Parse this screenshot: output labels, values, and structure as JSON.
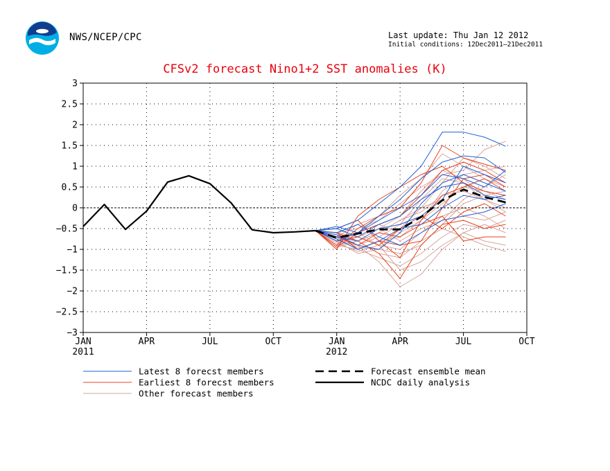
{
  "header": {
    "agency": "NWS/NCEP/CPC",
    "last_update": "Last update: Thu Jan 12 2012",
    "initial_conditions": "Initial conditions: 12Dec2011–21Dec2011"
  },
  "colors": {
    "latest": "#1f5fd6",
    "earliest": "#e8401c",
    "other": "#d9a49a",
    "title": "#e8000b",
    "analysis": "#000000"
  },
  "chart_data": {
    "type": "line",
    "title": "CFSv2 forecast Nino1+2 SST anomalies (K)",
    "ylim": [
      -3,
      3
    ],
    "yticks": [
      3,
      2.5,
      2,
      1.5,
      1,
      0.5,
      0,
      -0.5,
      -1,
      -1.5,
      -2,
      -2.5,
      -3
    ],
    "ytick_labels": [
      "3",
      "2.5",
      "2",
      "1.5",
      "1",
      "0.5",
      "0",
      "−0.5",
      "−1",
      "−1.5",
      "−2",
      "−2.5",
      "−3"
    ],
    "xlim": [
      "2011-01",
      "2012-10"
    ],
    "xticks": [
      {
        "x": "2011-01",
        "label": "JAN",
        "sub": "2011"
      },
      {
        "x": "2011-04",
        "label": "APR",
        "sub": ""
      },
      {
        "x": "2011-07",
        "label": "JUL",
        "sub": ""
      },
      {
        "x": "2011-10",
        "label": "OCT",
        "sub": ""
      },
      {
        "x": "2012-01",
        "label": "JAN",
        "sub": "2012"
      },
      {
        "x": "2012-04",
        "label": "APR",
        "sub": ""
      },
      {
        "x": "2012-07",
        "label": "JUL",
        "sub": ""
      },
      {
        "x": "2012-10",
        "label": "OCT",
        "sub": ""
      }
    ],
    "grid": true,
    "legend": [
      {
        "label": "Latest 8 forecst members",
        "style": "latest"
      },
      {
        "label": "Earliest 8 forecst members",
        "style": "earliest"
      },
      {
        "label": "Other forecast members",
        "style": "other"
      },
      {
        "label": "Forecast ensemble mean",
        "style": "mean"
      },
      {
        "label": "NCDC daily analysis",
        "style": "analysis"
      }
    ],
    "analysis": {
      "x": [
        "2011-01",
        "2011-02",
        "2011-03",
        "2011-04",
        "2011-05",
        "2011-06",
        "2011-07",
        "2011-08",
        "2011-09",
        "2011-10",
        "2011-11",
        "2011-12"
      ],
      "values": [
        -0.45,
        0.08,
        -0.52,
        -0.08,
        0.62,
        0.77,
        0.58,
        0.12,
        -0.53,
        -0.6,
        -0.58,
        -0.55
      ]
    },
    "ensemble_mean": {
      "x": [
        "2011-12",
        "2012-01",
        "2012-02",
        "2012-03",
        "2012-04",
        "2012-05",
        "2012-06",
        "2012-07",
        "2012-08",
        "2012-09"
      ],
      "values": [
        -0.55,
        -0.72,
        -0.62,
        -0.52,
        -0.52,
        -0.22,
        0.18,
        0.44,
        0.26,
        0.13
      ]
    },
    "members": {
      "x": [
        "2011-12",
        "2012-01",
        "2012-02",
        "2012-03",
        "2012-04",
        "2012-05",
        "2012-06",
        "2012-07",
        "2012-08",
        "2012-09"
      ],
      "latest": [
        [
          -0.55,
          -0.5,
          -0.3,
          0.1,
          0.5,
          1.0,
          1.82,
          1.82,
          1.7,
          1.48
        ],
        [
          -0.55,
          -0.45,
          -0.6,
          -0.2,
          0.2,
          0.7,
          1.1,
          1.25,
          1.2,
          0.85
        ],
        [
          -0.55,
          -0.65,
          -0.9,
          -1.0,
          -0.6,
          0.1,
          0.6,
          0.8,
          0.6,
          0.4
        ],
        [
          -0.55,
          -0.7,
          -0.8,
          -0.5,
          -0.4,
          -0.2,
          0.2,
          1.0,
          0.8,
          0.6
        ],
        [
          -0.55,
          -0.8,
          -0.6,
          -0.3,
          0.0,
          0.3,
          0.8,
          0.7,
          0.5,
          0.9
        ],
        [
          -0.55,
          -0.6,
          -0.4,
          -0.7,
          -0.9,
          -0.6,
          -0.3,
          -0.2,
          -0.1,
          0.1
        ],
        [
          -0.55,
          -0.75,
          -1.0,
          -0.8,
          -0.5,
          -0.4,
          0.0,
          0.3,
          0.2,
          0.3
        ],
        [
          -0.55,
          -0.5,
          -0.7,
          -0.4,
          -0.2,
          0.2,
          0.5,
          0.6,
          0.3,
          0.2
        ]
      ],
      "earliest": [
        [
          -0.55,
          -0.9,
          -0.5,
          -0.2,
          0.0,
          0.6,
          1.5,
          1.2,
          1.05,
          0.9
        ],
        [
          -0.55,
          -1.0,
          -0.2,
          0.2,
          0.5,
          0.8,
          1.0,
          0.6,
          0.4,
          0.3
        ],
        [
          -0.55,
          -0.6,
          -0.8,
          -1.1,
          -1.7,
          -0.9,
          -0.4,
          -0.3,
          -0.5,
          -0.4
        ],
        [
          -0.55,
          -0.7,
          -0.9,
          -0.6,
          -0.7,
          -0.4,
          -0.2,
          -0.8,
          -0.7,
          -0.7
        ],
        [
          -0.55,
          -0.5,
          -0.3,
          -0.8,
          -1.2,
          -0.3,
          0.3,
          0.5,
          0.7,
          0.4
        ],
        [
          -0.55,
          -0.95,
          -0.6,
          -0.4,
          -0.2,
          0.3,
          0.9,
          1.1,
          0.9,
          0.6
        ],
        [
          -0.55,
          -0.8,
          -0.7,
          -0.9,
          -0.5,
          -0.2,
          -0.5,
          -0.1,
          0.1,
          -0.2
        ],
        [
          -0.55,
          -0.6,
          -1.0,
          -0.8,
          -0.9,
          -0.8,
          0.0,
          0.7,
          0.8,
          0.5
        ]
      ],
      "other": [
        [
          -0.55,
          -0.7,
          -0.9,
          -1.3,
          -1.9,
          -1.6,
          -1.0,
          -0.6,
          -0.8,
          -0.9
        ],
        [
          -0.55,
          -0.8,
          -1.1,
          -1.0,
          -0.5,
          0.0,
          0.6,
          1.2,
          1.0,
          0.7
        ],
        [
          -0.55,
          -0.6,
          -0.5,
          -0.3,
          0.1,
          0.5,
          0.8,
          0.9,
          1.4,
          1.6
        ],
        [
          -0.55,
          -0.9,
          -0.8,
          -0.6,
          -0.3,
          -0.1,
          0.3,
          0.4,
          0.2,
          0.0
        ],
        [
          -0.55,
          -0.65,
          -1.0,
          -1.2,
          -1.4,
          -1.1,
          -0.7,
          -0.4,
          -0.5,
          -0.3
        ],
        [
          -0.55,
          -0.75,
          -0.6,
          -0.4,
          -0.6,
          -0.3,
          0.1,
          0.5,
          0.4,
          0.2
        ],
        [
          -0.55,
          -0.85,
          -1.05,
          -0.9,
          -1.0,
          -0.6,
          -0.2,
          0.0,
          -0.2,
          -0.5
        ],
        [
          -0.55,
          -0.7,
          -0.4,
          -0.2,
          0.3,
          0.7,
          1.3,
          1.0,
          0.7,
          0.5
        ],
        [
          -0.55,
          -0.95,
          -0.8,
          -1.1,
          -1.2,
          -0.8,
          -0.5,
          -0.7,
          -0.9,
          -1.05
        ],
        [
          -0.55,
          -0.6,
          -0.7,
          -0.5,
          -0.8,
          -0.5,
          -0.3,
          0.2,
          0.5,
          0.8
        ],
        [
          -0.55,
          -0.8,
          -0.9,
          -0.7,
          -0.4,
          0.2,
          0.7,
          0.6,
          0.2,
          -0.1
        ],
        [
          -0.55,
          -0.7,
          -0.6,
          -0.9,
          -1.5,
          -1.3,
          -0.9,
          -0.6,
          -0.4,
          -0.6
        ],
        [
          -0.55,
          -0.9,
          -1.0,
          -0.8,
          -0.7,
          -0.3,
          0.4,
          0.8,
          0.9,
          1.0
        ],
        [
          -0.55,
          -0.65,
          -0.8,
          -0.6,
          -0.3,
          0.0,
          0.2,
          -0.2,
          -0.3,
          -0.1
        ],
        [
          -0.55,
          -0.75,
          -0.95,
          -1.0,
          -1.1,
          -0.9,
          -0.4,
          0.1,
          0.3,
          0.4
        ],
        [
          -0.55,
          -0.85,
          -0.7,
          -0.5,
          -0.2,
          0.4,
          0.9,
          0.7,
          0.3,
          0.2
        ]
      ]
    }
  }
}
